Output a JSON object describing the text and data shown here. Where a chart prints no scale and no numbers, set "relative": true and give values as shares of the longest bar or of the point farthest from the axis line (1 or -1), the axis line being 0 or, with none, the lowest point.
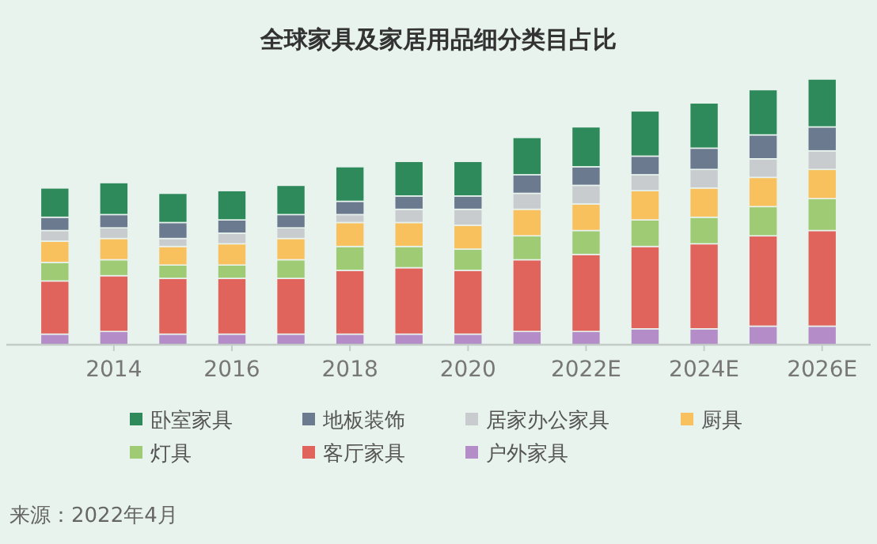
{
  "chart_data": {
    "type": "bar",
    "title": "全球家具及家居用品细分类目占比",
    "relative": true,
    "stacked": true,
    "legend": "bottom",
    "annotations": [
      "来源：2022年4月"
    ],
    "categories": [
      null,
      "2014",
      null,
      "2016",
      null,
      "2018",
      null,
      "2020",
      null,
      "2022E",
      null,
      "2024E",
      null,
      "2026E"
    ],
    "series": [
      {
        "name": "户外家具",
        "color": "#b48cc8",
        "values": [
          0.04,
          0.05,
          0.04,
          0.04,
          0.04,
          0.04,
          0.04,
          0.04,
          0.05,
          0.05,
          0.06,
          0.06,
          0.07,
          0.07
        ]
      },
      {
        "name": "客厅家具",
        "color": "#e0645c",
        "values": [
          0.2,
          0.21,
          0.21,
          0.21,
          0.21,
          0.24,
          0.25,
          0.24,
          0.27,
          0.29,
          0.31,
          0.32,
          0.34,
          0.36
        ]
      },
      {
        "name": "灯具",
        "color": "#9fcb74",
        "values": [
          0.07,
          0.06,
          0.05,
          0.05,
          0.07,
          0.09,
          0.08,
          0.08,
          0.09,
          0.09,
          0.1,
          0.1,
          0.11,
          0.12
        ]
      },
      {
        "name": "厨具",
        "color": "#f9c15d",
        "values": [
          0.08,
          0.08,
          0.07,
          0.08,
          0.08,
          0.09,
          0.09,
          0.09,
          0.1,
          0.1,
          0.11,
          0.11,
          0.11,
          0.11
        ]
      },
      {
        "name": "居家办公家具",
        "color": "#c9cccf",
        "values": [
          0.04,
          0.04,
          0.03,
          0.04,
          0.04,
          0.03,
          0.05,
          0.06,
          0.06,
          0.07,
          0.06,
          0.07,
          0.07,
          0.07
        ]
      },
      {
        "name": "地板装饰",
        "color": "#6b7a8f",
        "values": [
          0.05,
          0.05,
          0.06,
          0.05,
          0.05,
          0.05,
          0.05,
          0.05,
          0.07,
          0.07,
          0.07,
          0.08,
          0.09,
          0.09
        ]
      },
      {
        "name": "卧室家具",
        "color": "#2f8a5b",
        "values": [
          0.11,
          0.12,
          0.11,
          0.11,
          0.11,
          0.13,
          0.13,
          0.13,
          0.14,
          0.15,
          0.17,
          0.17,
          0.17,
          0.18
        ]
      }
    ]
  }
}
